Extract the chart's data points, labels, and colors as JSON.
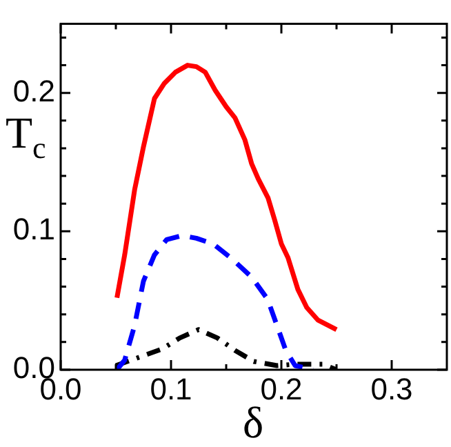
{
  "chart_data": {
    "type": "line",
    "xlabel": "δ",
    "ylabel": "T$_{c}$",
    "xlim": [
      0,
      0.35
    ],
    "ylim": [
      0,
      0.25
    ],
    "xticks": [
      {
        "value": 0,
        "label": "0.0"
      },
      {
        "value": 0.05,
        "label": null
      },
      {
        "value": 0.1,
        "label": "0.1"
      },
      {
        "value": 0.15,
        "label": null
      },
      {
        "value": 0.2,
        "label": "0.2"
      },
      {
        "value": 0.25,
        "label": null
      },
      {
        "value": 0.3,
        "label": "0.3"
      }
    ],
    "yticks": [
      {
        "value": 0,
        "label": "0.0"
      },
      {
        "value": 0.02,
        "label": null
      },
      {
        "value": 0.04,
        "label": null
      },
      {
        "value": 0.06,
        "label": null
      },
      {
        "value": 0.08,
        "label": null
      },
      {
        "value": 0.1,
        "label": "0.1"
      },
      {
        "value": 0.12,
        "label": null
      },
      {
        "value": 0.14,
        "label": null
      },
      {
        "value": 0.16,
        "label": null
      },
      {
        "value": 0.18,
        "label": null
      },
      {
        "value": 0.2,
        "label": "0.2"
      },
      {
        "value": 0.22,
        "label": null
      },
      {
        "value": 0.24,
        "label": null
      }
    ],
    "grid": false,
    "legend": false,
    "marker": "none",
    "series": [
      {
        "color": "#ff0000",
        "line_style": "solid",
        "x": [
          0.051,
          0.058,
          0.067,
          0.075,
          0.085,
          0.094,
          0.104,
          0.115,
          0.123,
          0.131,
          0.14,
          0.15,
          0.158,
          0.167,
          0.173,
          0.179,
          0.188,
          0.194,
          0.2,
          0.206,
          0.215,
          0.223,
          0.233,
          0.25
        ],
        "values": [
          0.052,
          0.083,
          0.13,
          0.161,
          0.196,
          0.207,
          0.215,
          0.22,
          0.219,
          0.215,
          0.202,
          0.19,
          0.182,
          0.166,
          0.149,
          0.138,
          0.124,
          0.108,
          0.091,
          0.081,
          0.058,
          0.045,
          0.036,
          0.029
        ]
      },
      {
        "color": "#0000ff",
        "line_style": "dashed",
        "x": [
          0.051,
          0.058,
          0.067,
          0.075,
          0.085,
          0.096,
          0.11,
          0.123,
          0.138,
          0.154,
          0.173,
          0.1875,
          0.196,
          0.204,
          0.2125,
          0.229
        ],
        "values": [
          0,
          0.007,
          0.032,
          0.064,
          0.083,
          0.094,
          0.097,
          0.095,
          0.091,
          0.081,
          0.067,
          0.051,
          0.032,
          0.014,
          0.003,
          0
        ]
      },
      {
        "color": "#000000",
        "line_style": "dashdot",
        "x": [
          0.05,
          0.071,
          0.092,
          0.108,
          0.125,
          0.142,
          0.158,
          0.175,
          0.196,
          0.2125,
          0.2375,
          0.25
        ],
        "values": [
          0.003,
          0.009,
          0.015,
          0.023,
          0.029,
          0.023,
          0.014,
          0.006,
          0.003,
          0.004,
          0.004,
          0
        ]
      }
    ]
  }
}
